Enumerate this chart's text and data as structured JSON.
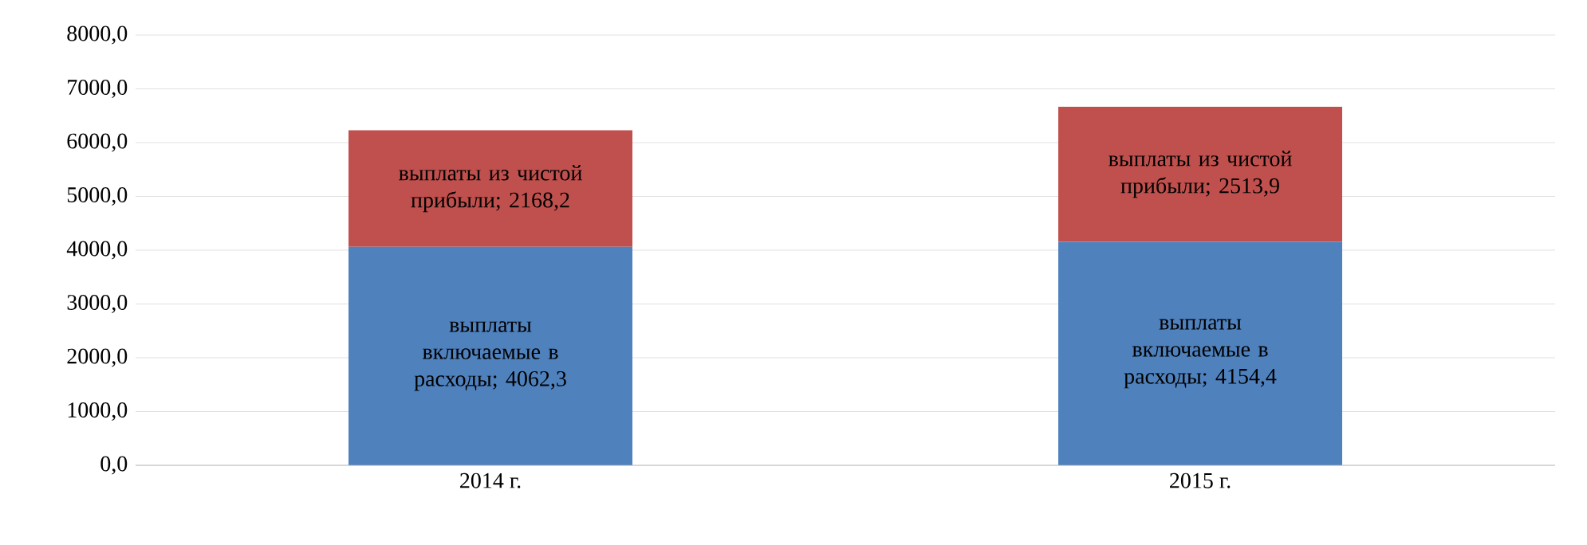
{
  "chart_data": {
    "type": "bar",
    "stacked": true,
    "categories": [
      "2014 г.",
      "2015 г."
    ],
    "series": [
      {
        "color": "#4f81bd",
        "values": [
          4062.3,
          4154.4
        ],
        "value_labels": [
          "выплаты включаемые в расходы; 4062,3",
          "выплаты включаемые в расходы; 4154,4"
        ]
      },
      {
        "color": "#c0504d",
        "values": [
          2168.2,
          2513.9
        ],
        "value_labels": [
          "выплаты из чистой прибыли; 2168,2",
          "выплаты из чистой прибыли; 2513,9"
        ]
      }
    ],
    "ylim": [
      0,
      8000
    ],
    "yticks": [
      {
        "value": 0,
        "label": "0,0"
      },
      {
        "value": 1000,
        "label": "1000,0"
      },
      {
        "value": 2000,
        "label": "2000,0"
      },
      {
        "value": 3000,
        "label": "3000,0"
      },
      {
        "value": 4000,
        "label": "4000,0"
      },
      {
        "value": 5000,
        "label": "5000,0"
      },
      {
        "value": 6000,
        "label": "6000,0"
      },
      {
        "value": 7000,
        "label": "7000,0"
      },
      {
        "value": 8000,
        "label": "8000,0"
      }
    ],
    "grid": "y"
  }
}
